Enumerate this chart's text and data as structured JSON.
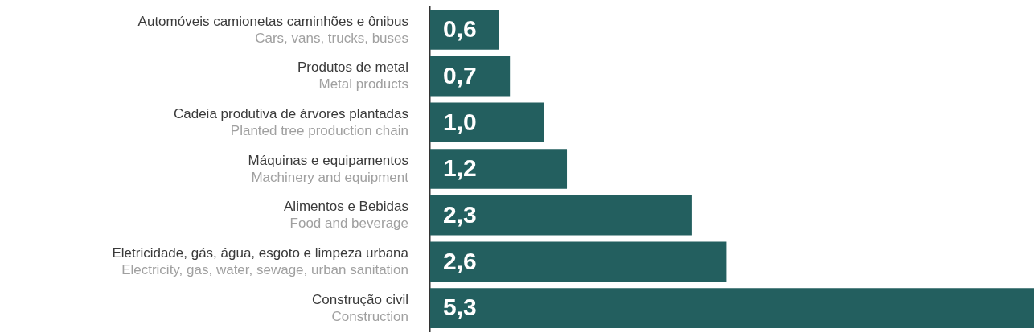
{
  "chart_data": {
    "type": "bar",
    "orientation": "horizontal",
    "categories": [
      "Automóveis camionetas caminhões e ônibus\nCars, vans, trucks, buses",
      "Produtos de metal\nMetal products",
      "Cadeia produtiva de árvores plantadas\nPlanted tree production chain",
      "Máquinas e equipamentos\nMachinery and equipment",
      "Alimentos e Bebidas\nFood and beverage",
      "Eletricidade, gás, água, esgoto e limpeza urbana\nElectricity, gas, water, sewage, urban sanitation",
      "Construção civil\nConstruction"
    ],
    "values": [
      0.6,
      0.7,
      1.0,
      1.2,
      2.3,
      2.6,
      5.3
    ],
    "value_labels": [
      "0,6",
      "0,7",
      "1,0",
      "1,2",
      "2,3",
      "2,6",
      "5,3"
    ],
    "color": "#235f5f",
    "grid": false,
    "legend": false
  }
}
